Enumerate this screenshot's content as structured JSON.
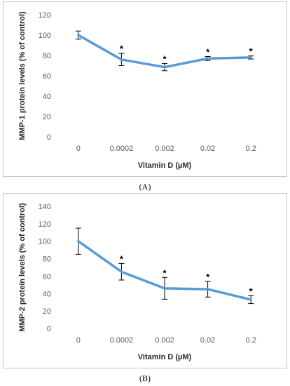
{
  "chart_data": [
    {
      "type": "line",
      "panel_label": "(A)",
      "categories": [
        "0",
        "0.0002",
        "0.002",
        "0.02",
        "0.2"
      ],
      "values": [
        100,
        76,
        68.5,
        77,
        78
      ],
      "errors": [
        4,
        6,
        3.5,
        2,
        1.5
      ],
      "significance": [
        "",
        "*",
        "*",
        "*",
        "*"
      ],
      "xlabel": "Vitamin D (µM)",
      "ylabel": "MMP-1 protein levels (% of control)",
      "ylim": [
        0,
        120
      ],
      "yticks": [
        "0",
        "20",
        "40",
        "60",
        "80",
        "100",
        "120"
      ],
      "line_color": "#5b9bd5",
      "grid": false
    },
    {
      "type": "line",
      "panel_label": "(B)",
      "categories": [
        "0",
        "0.0002",
        "0.002",
        "0.02",
        "0.2"
      ],
      "values": [
        100,
        65,
        46,
        45,
        33
      ],
      "errors": [
        15,
        9.5,
        12.5,
        9,
        4.5
      ],
      "significance": [
        "",
        "*",
        "*",
        "*",
        "*"
      ],
      "xlabel": "Vitamin D (µM)",
      "ylabel": "MMP-2 protein levels (% of control)",
      "ylim": [
        0,
        140
      ],
      "yticks": [
        "0",
        "20",
        "40",
        "60",
        "80",
        "100",
        "120",
        "140"
      ],
      "line_color": "#5b9bd5",
      "grid": false
    }
  ]
}
